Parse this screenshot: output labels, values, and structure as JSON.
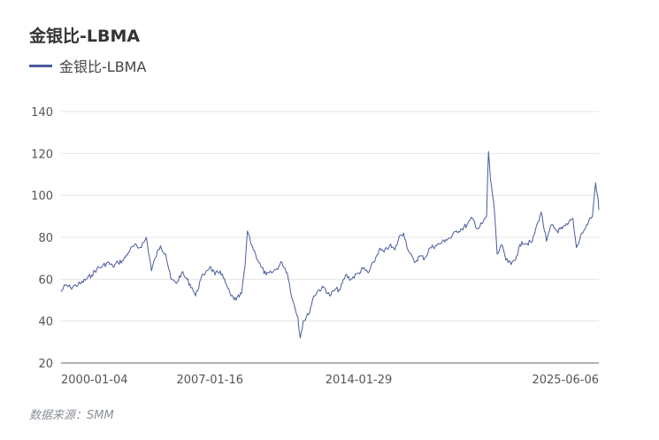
{
  "header": {
    "title": "金银比-LBMA"
  },
  "legend": {
    "label": "金银比-LBMA"
  },
  "source": "数据来源：SMM",
  "colors": {
    "series": "#4a5b9c",
    "grid": "#e6e6e6",
    "axis": "#666666"
  },
  "chart_data": {
    "type": "line",
    "ylim": [
      20,
      140
    ],
    "yticks": [
      20,
      40,
      60,
      80,
      100,
      120,
      140
    ],
    "xtick_labels": [
      "2000-01-04",
      "2007-01-16",
      "2014-01-29",
      "2025-06-06"
    ],
    "xlim": [
      "2000-01-04",
      "2025-06-06"
    ],
    "grid": true,
    "series": [
      {
        "name": "金银比-LBMA",
        "points": [
          [
            "2000-01-04",
            54
          ],
          [
            "2000-03-15",
            57
          ],
          [
            "2000-06-15",
            56
          ],
          [
            "2000-09-15",
            57
          ],
          [
            "2000-12-15",
            58
          ],
          [
            "2001-03-15",
            60
          ],
          [
            "2001-06-15",
            62
          ],
          [
            "2001-09-15",
            65
          ],
          [
            "2001-12-15",
            66
          ],
          [
            "2002-03-15",
            68
          ],
          [
            "2002-06-15",
            66
          ],
          [
            "2002-09-15",
            68
          ],
          [
            "2002-12-15",
            69
          ],
          [
            "2003-03-15",
            73
          ],
          [
            "2003-06-15",
            76
          ],
          [
            "2003-09-15",
            75
          ],
          [
            "2003-12-15",
            78
          ],
          [
            "2004-01-15",
            80
          ],
          [
            "2004-04-15",
            64
          ],
          [
            "2004-06-15",
            70
          ],
          [
            "2004-09-15",
            76
          ],
          [
            "2004-12-15",
            72
          ],
          [
            "2005-03-15",
            60
          ],
          [
            "2005-06-15",
            58
          ],
          [
            "2005-09-15",
            63
          ],
          [
            "2005-12-15",
            60
          ],
          [
            "2006-03-15",
            56
          ],
          [
            "2006-05-15",
            52
          ],
          [
            "2006-08-15",
            60
          ],
          [
            "2006-11-15",
            64
          ],
          [
            "2007-01-16",
            66
          ],
          [
            "2007-04-15",
            62
          ],
          [
            "2007-07-15",
            64
          ],
          [
            "2007-10-15",
            58
          ],
          [
            "2008-01-15",
            52
          ],
          [
            "2008-04-15",
            50
          ],
          [
            "2008-07-15",
            53
          ],
          [
            "2008-09-15",
            66
          ],
          [
            "2008-10-25",
            83
          ],
          [
            "2008-12-15",
            78
          ],
          [
            "2009-03-15",
            72
          ],
          [
            "2009-06-15",
            66
          ],
          [
            "2009-09-15",
            62
          ],
          [
            "2009-12-15",
            63
          ],
          [
            "2010-03-15",
            65
          ],
          [
            "2010-06-15",
            68
          ],
          [
            "2010-09-15",
            63
          ],
          [
            "2010-12-15",
            50
          ],
          [
            "2011-03-15",
            42
          ],
          [
            "2011-04-25",
            32
          ],
          [
            "2011-06-15",
            40
          ],
          [
            "2011-09-15",
            43
          ],
          [
            "2011-12-15",
            52
          ],
          [
            "2012-03-15",
            55
          ],
          [
            "2012-06-15",
            56
          ],
          [
            "2012-09-15",
            52
          ],
          [
            "2012-12-15",
            55
          ],
          [
            "2013-03-15",
            55
          ],
          [
            "2013-06-15",
            62
          ],
          [
            "2013-09-15",
            60
          ],
          [
            "2014-01-29",
            63
          ],
          [
            "2014-04-15",
            65
          ],
          [
            "2014-07-15",
            63
          ],
          [
            "2014-10-15",
            68
          ],
          [
            "2015-01-15",
            74
          ],
          [
            "2015-04-15",
            73
          ],
          [
            "2015-07-15",
            76
          ],
          [
            "2015-10-15",
            74
          ],
          [
            "2016-01-15",
            81
          ],
          [
            "2016-03-15",
            82
          ],
          [
            "2016-06-15",
            73
          ],
          [
            "2016-09-15",
            68
          ],
          [
            "2016-12-15",
            71
          ],
          [
            "2017-03-15",
            70
          ],
          [
            "2017-06-15",
            75
          ],
          [
            "2017-09-15",
            76
          ],
          [
            "2017-12-15",
            77
          ],
          [
            "2018-03-15",
            79
          ],
          [
            "2018-06-15",
            80
          ],
          [
            "2018-09-15",
            83
          ],
          [
            "2018-12-15",
            84
          ],
          [
            "2019-03-15",
            86
          ],
          [
            "2019-06-15",
            89
          ],
          [
            "2019-09-15",
            84
          ],
          [
            "2019-12-15",
            87
          ],
          [
            "2020-02-15",
            90
          ],
          [
            "2020-03-18",
            121
          ],
          [
            "2020-04-20",
            108
          ],
          [
            "2020-06-15",
            97
          ],
          [
            "2020-07-20",
            84
          ],
          [
            "2020-08-15",
            72
          ],
          [
            "2020-11-15",
            76
          ],
          [
            "2021-01-15",
            69
          ],
          [
            "2021-04-15",
            67
          ],
          [
            "2021-07-15",
            71
          ],
          [
            "2021-10-15",
            78
          ],
          [
            "2022-01-15",
            77
          ],
          [
            "2022-04-15",
            78
          ],
          [
            "2022-07-15",
            87
          ],
          [
            "2022-09-15",
            92
          ],
          [
            "2022-12-15",
            78
          ],
          [
            "2023-03-15",
            86
          ],
          [
            "2023-06-15",
            83
          ],
          [
            "2023-09-15",
            84
          ],
          [
            "2023-12-15",
            86
          ],
          [
            "2024-03-15",
            89
          ],
          [
            "2024-05-15",
            75
          ],
          [
            "2024-08-15",
            82
          ],
          [
            "2024-10-15",
            84
          ],
          [
            "2024-12-15",
            88
          ],
          [
            "2025-02-15",
            90
          ],
          [
            "2025-04-10",
            106
          ],
          [
            "2025-05-15",
            100
          ],
          [
            "2025-06-06",
            93
          ]
        ]
      }
    ]
  }
}
